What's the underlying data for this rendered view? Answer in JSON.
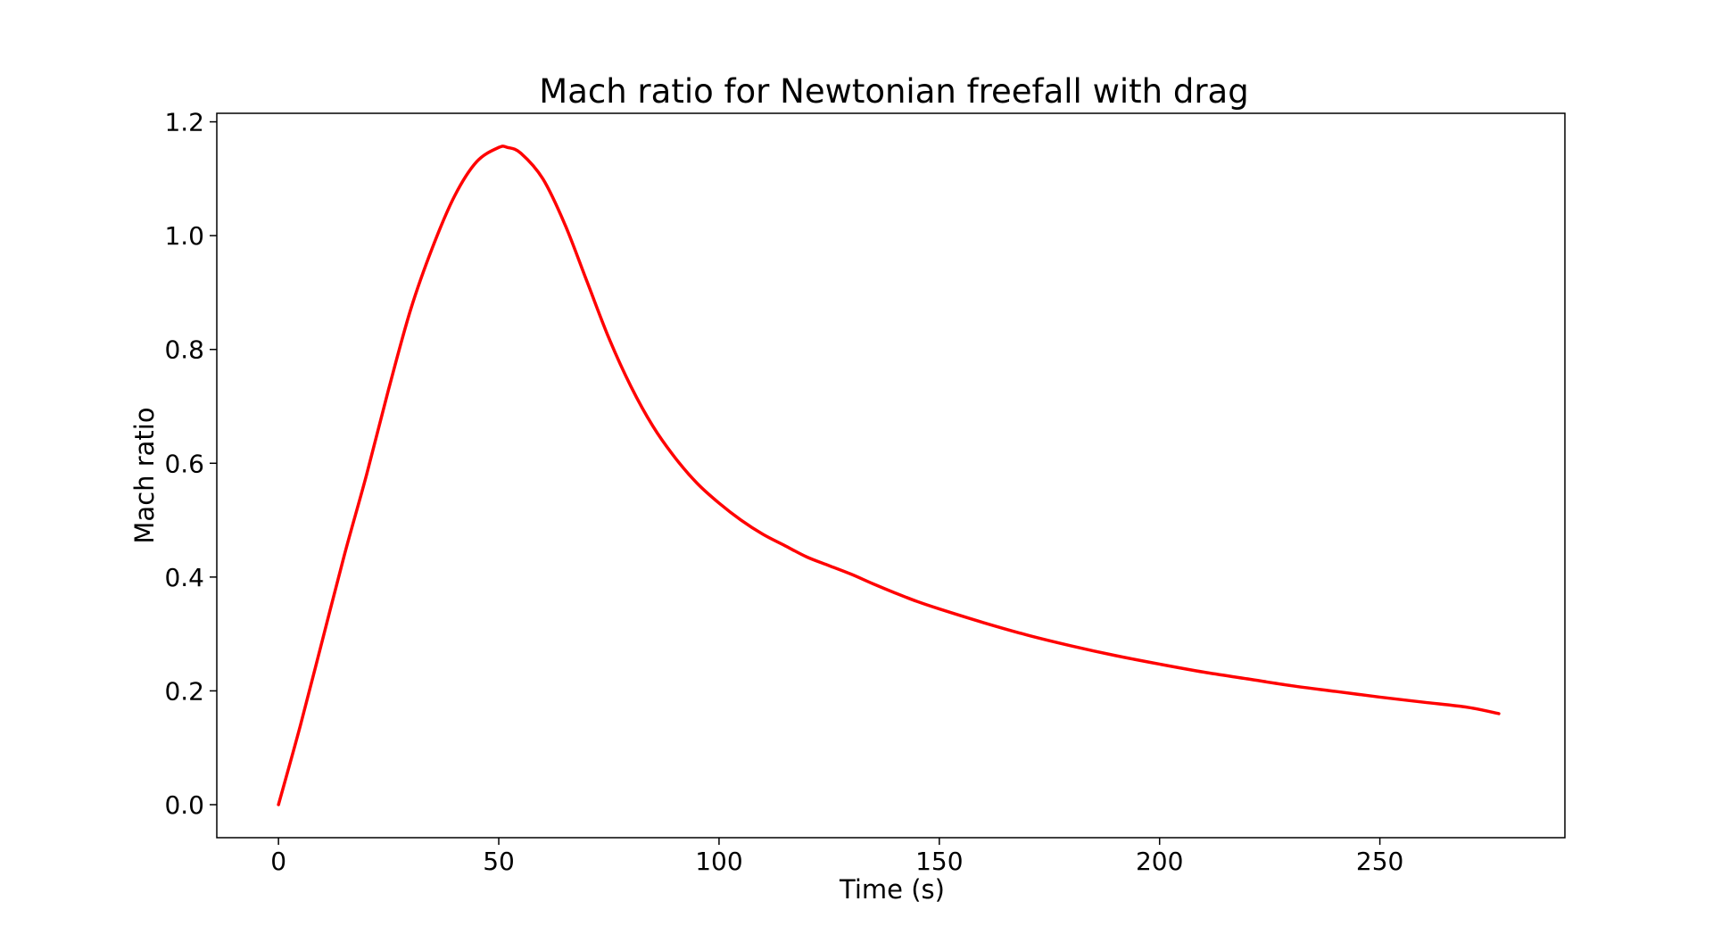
{
  "chart_data": {
    "type": "line",
    "title": "Mach ratio for Newtonian freefall with drag",
    "xlabel": "Time (s)",
    "ylabel": "Mach ratio",
    "xlim": [
      -14,
      292
    ],
    "ylim": [
      -0.058,
      1.215
    ],
    "xticks": [
      0,
      50,
      100,
      150,
      200,
      250
    ],
    "yticks": [
      0.0,
      0.2,
      0.4,
      0.6,
      0.8,
      1.0,
      1.2
    ],
    "xtick_labels": [
      "0",
      "50",
      "100",
      "150",
      "200",
      "250"
    ],
    "ytick_labels": [
      "0.0",
      "0.2",
      "0.4",
      "0.6",
      "0.8",
      "1.0",
      "1.2"
    ],
    "grid": false,
    "series": [
      {
        "color": "#ff0000",
        "x": [
          0,
          5,
          10,
          15,
          20,
          25,
          30,
          35,
          40,
          45,
          50,
          52,
          55,
          60,
          65,
          70,
          75,
          80,
          85,
          90,
          95,
          100,
          105,
          110,
          115,
          120,
          125,
          130,
          135,
          140,
          145,
          150,
          160,
          170,
          180,
          190,
          200,
          210,
          220,
          230,
          240,
          250,
          260,
          270,
          277
        ],
        "y": [
          0.0,
          0.14,
          0.29,
          0.44,
          0.58,
          0.73,
          0.87,
          0.98,
          1.07,
          1.13,
          1.155,
          1.155,
          1.145,
          1.1,
          1.02,
          0.92,
          0.82,
          0.735,
          0.665,
          0.61,
          0.565,
          0.53,
          0.5,
          0.475,
          0.455,
          0.435,
          0.42,
          0.405,
          0.388,
          0.372,
          0.357,
          0.344,
          0.32,
          0.298,
          0.279,
          0.262,
          0.247,
          0.233,
          0.221,
          0.209,
          0.199,
          0.189,
          0.18,
          0.171,
          0.16
        ]
      }
    ]
  }
}
